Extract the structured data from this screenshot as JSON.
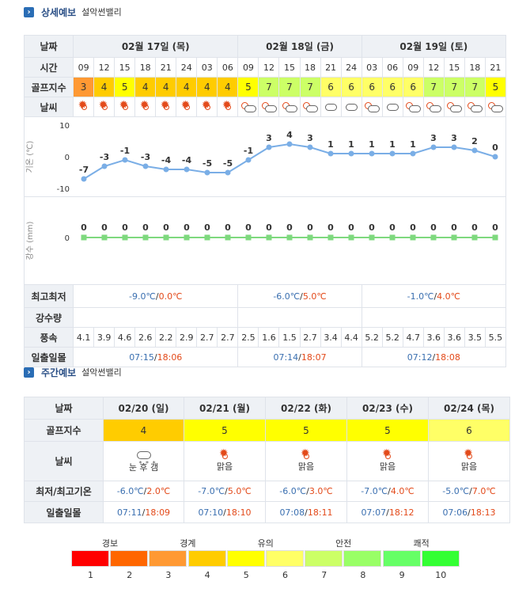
{
  "detail": {
    "title": "상세예보",
    "place": "설악썬밸리",
    "labels": {
      "date": "날짜",
      "time": "시간",
      "golf": "골프지수",
      "weather": "날씨",
      "temp_axis": "기온 (℃)",
      "rain_axis": "강수 (mm)",
      "minmax": "최고최저",
      "rain": "강수량",
      "wind": "풍속",
      "sun": "일출일몰"
    },
    "days": [
      {
        "date": "02월 17일 (목)",
        "min": "-9.0℃",
        "max": "0.0℃",
        "sunrise": "07:15",
        "sunset": "18:06"
      },
      {
        "date": "02월 18일 (금)",
        "min": "-6.0℃",
        "max": "5.0℃",
        "sunrise": "07:14",
        "sunset": "18:07"
      },
      {
        "date": "02월 19일 (토)",
        "min": "-1.0℃",
        "max": "4.0℃",
        "sunrise": "07:12",
        "sunset": "18:08"
      }
    ],
    "times": [
      "09",
      "12",
      "15",
      "18",
      "21",
      "24",
      "03",
      "06",
      "09",
      "12",
      "15",
      "18",
      "21",
      "24",
      "03",
      "06",
      "09",
      "12",
      "15",
      "18",
      "21"
    ],
    "golf": [
      "3",
      "4",
      "5",
      "4",
      "4",
      "4",
      "4",
      "4",
      "5",
      "7",
      "7",
      "7",
      "6",
      "6",
      "6",
      "6",
      "6",
      "7",
      "7",
      "7",
      "5"
    ],
    "weather_icons": [
      "sun-icon",
      "sun-icon",
      "sun-icon",
      "sun-icon",
      "sun-icon",
      "sun-icon",
      "sun-icon",
      "sun-icon",
      "partly-cloudy-icon",
      "partly-cloudy-icon",
      "partly-cloudy-icon",
      "partly-cloudy-icon",
      "cloudy-icon",
      "cloudy-icon",
      "partly-cloudy-icon",
      "cloudy-icon",
      "partly-cloudy-icon",
      "partly-cloudy-icon",
      "partly-cloudy-icon",
      "partly-cloudy-icon",
      "partly-cloudy-icon"
    ],
    "wind": [
      "4.1",
      "3.9",
      "4.6",
      "2.6",
      "2.2",
      "2.9",
      "2.7",
      "2.7",
      "2.5",
      "1.6",
      "1.5",
      "2.7",
      "3.4",
      "4.4",
      "5.2",
      "5.2",
      "4.7",
      "3.6",
      "3.6",
      "3.5",
      "5.5"
    ]
  },
  "chart_data": [
    {
      "type": "line",
      "x": [
        "09",
        "12",
        "15",
        "18",
        "21",
        "24",
        "03",
        "06",
        "09",
        "12",
        "15",
        "18",
        "21",
        "24",
        "03",
        "06",
        "09",
        "12",
        "15",
        "18",
        "21"
      ],
      "values": [
        -7,
        -3,
        -1,
        -3,
        -4,
        -4,
        -5,
        -5,
        -1,
        3,
        4,
        3,
        1,
        1,
        1,
        1,
        1,
        3,
        3,
        2,
        0
      ],
      "ylabel": "기온 (℃)",
      "ylim": [
        -10,
        10
      ],
      "yticks": [
        10,
        0,
        -10
      ],
      "color": "#7aaee6"
    },
    {
      "type": "line",
      "x": [
        "09",
        "12",
        "15",
        "18",
        "21",
        "24",
        "03",
        "06",
        "09",
        "12",
        "15",
        "18",
        "21",
        "24",
        "03",
        "06",
        "09",
        "12",
        "15",
        "18",
        "21"
      ],
      "values": [
        0,
        0,
        0,
        0,
        0,
        0,
        0,
        0,
        0,
        0,
        0,
        0,
        0,
        0,
        0,
        0,
        0,
        0,
        0,
        0,
        0
      ],
      "ylabel": "강수 (mm)",
      "yticks": [
        0
      ],
      "color": "#7ed97e"
    }
  ],
  "weekly": {
    "title": "주간예보",
    "place": "설악썬밸리",
    "labels": {
      "date": "날짜",
      "golf": "골프지수",
      "weather": "날씨",
      "temp": "최저/최고기온",
      "sun": "일출일몰"
    },
    "days": [
      {
        "date": "02/20 (일)",
        "golf": "4",
        "weather": "눈 후 갬",
        "icon": "snow-icon",
        "min": "-6.0℃",
        "max": "2.0℃",
        "sunrise": "07:11",
        "sunset": "18:09"
      },
      {
        "date": "02/21 (월)",
        "golf": "5",
        "weather": "맑음",
        "icon": "sun-icon",
        "min": "-7.0℃",
        "max": "5.0℃",
        "sunrise": "07:10",
        "sunset": "18:10"
      },
      {
        "date": "02/22 (화)",
        "golf": "5",
        "weather": "맑음",
        "icon": "sun-icon",
        "min": "-6.0℃",
        "max": "3.0℃",
        "sunrise": "07:08",
        "sunset": "18:11"
      },
      {
        "date": "02/23 (수)",
        "golf": "5",
        "weather": "맑음",
        "icon": "sun-icon",
        "min": "-7.0℃",
        "max": "4.0℃",
        "sunrise": "07:07",
        "sunset": "18:12"
      },
      {
        "date": "02/24 (목)",
        "golf": "6",
        "weather": "맑음",
        "icon": "sun-icon",
        "min": "-5.0℃",
        "max": "7.0℃",
        "sunrise": "07:06",
        "sunset": "18:13"
      }
    ]
  },
  "legend": {
    "labels": [
      "경보",
      "경계",
      "유의",
      "안전",
      "쾌적"
    ],
    "numbers": [
      "1",
      "2",
      "3",
      "4",
      "5",
      "6",
      "7",
      "8",
      "9",
      "10"
    ],
    "colors": [
      "#ff0000",
      "#ff6600",
      "#ff9933",
      "#ffcc00",
      "#ffff00",
      "#ffff66",
      "#ccff66",
      "#99ff66",
      "#66ff66",
      "#33ff33"
    ]
  },
  "golf_colors": {
    "3": "#ff9933",
    "4": "#ffcc00",
    "5": "#ffff00",
    "6": "#ffff66",
    "7": "#ccff66"
  }
}
